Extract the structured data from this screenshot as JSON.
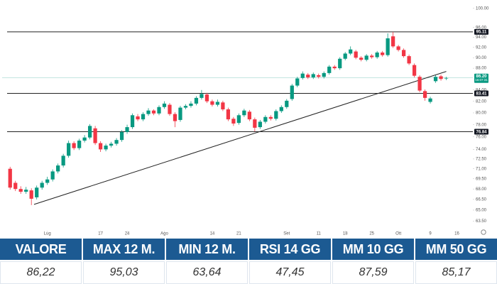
{
  "chart_data": {
    "type": "candlestick",
    "up_color": "#089981",
    "down_color": "#f23645",
    "open": [
      71.0,
      68.9,
      68.0,
      67.6,
      67.8,
      66.8,
      68.2,
      68.9,
      69.4,
      70.6,
      71.5,
      73.0,
      75.0,
      74.2,
      75.4,
      75.9,
      77.4,
      75.0,
      74.0,
      74.6,
      74.9,
      75.5,
      76.8,
      77.6,
      79.4,
      78.9,
      79.8,
      80.4,
      79.9,
      81.0,
      81.4,
      79.8,
      78.8,
      80.9,
      81.2,
      81.6,
      82.6,
      83.2,
      82.0,
      81.4,
      81.8,
      80.6,
      79.0,
      78.3,
      79.6,
      80.2,
      78.9,
      77.6,
      78.5,
      79.3,
      79.0,
      80.3,
      81.0,
      82.4,
      84.8,
      86.2,
      86.8,
      86.3,
      86.7,
      86.4,
      87.1,
      88.3,
      88.0,
      89.8,
      90.8,
      91.2,
      90.0,
      89.6,
      90.4,
      90.1,
      91.0,
      90.5,
      94.2,
      92.2,
      91.5,
      90.3,
      88.6,
      86.4,
      83.8,
      81.9,
      85.6,
      86.5,
      86.1
    ],
    "high": [
      71.3,
      69.2,
      68.4,
      68.3,
      68.1,
      68.5,
      69.2,
      69.8,
      70.9,
      71.8,
      73.3,
      75.4,
      75.3,
      75.7,
      76.3,
      78.1,
      77.8,
      75.3,
      74.9,
      75.2,
      75.8,
      77.1,
      78.0,
      79.9,
      79.8,
      80.1,
      80.8,
      80.6,
      81.3,
      82.0,
      81.7,
      80.1,
      81.2,
      81.5,
      82.0,
      82.9,
      84.0,
      83.5,
      82.3,
      82.3,
      82.1,
      80.9,
      79.3,
      79.9,
      80.7,
      80.5,
      79.2,
      78.8,
      79.6,
      79.6,
      80.6,
      81.3,
      82.4,
      85.1,
      86.4,
      87.4,
      87.1,
      87.2,
      87.0,
      87.4,
      88.6,
      88.6,
      90.1,
      91.1,
      92.2,
      91.5,
      90.3,
      90.7,
      90.7,
      91.3,
      91.3,
      94.8,
      95.1,
      92.5,
      91.8,
      90.6,
      88.9,
      86.7,
      84.1,
      82.8,
      86.7,
      86.8,
      86.4
    ],
    "low": [
      67.9,
      67.7,
      67.3,
      67.3,
      65.7,
      66.5,
      67.9,
      68.6,
      69.1,
      70.3,
      71.2,
      72.7,
      73.9,
      73.9,
      75.1,
      75.6,
      74.7,
      73.6,
      73.7,
      74.3,
      74.6,
      75.2,
      76.5,
      77.3,
      78.6,
      78.6,
      79.5,
      79.6,
      79.6,
      80.7,
      79.5,
      77.6,
      78.5,
      80.6,
      80.9,
      81.3,
      82.3,
      81.7,
      81.1,
      81.1,
      80.3,
      78.6,
      77.8,
      78.0,
      79.3,
      78.6,
      76.9,
      77.3,
      78.2,
      78.7,
      78.7,
      80.0,
      80.7,
      82.1,
      84.5,
      85.9,
      86.0,
      86.0,
      86.1,
      86.1,
      86.8,
      87.7,
      87.7,
      89.5,
      90.5,
      89.7,
      89.3,
      89.3,
      89.8,
      89.8,
      90.2,
      90.2,
      91.9,
      91.2,
      90.0,
      88.6,
      86.3,
      83.6,
      82.1,
      81.6,
      85.3,
      85.7,
      85.8
    ],
    "close": [
      68.2,
      68.0,
      67.6,
      67.9,
      66.6,
      68.2,
      68.9,
      69.4,
      70.6,
      71.5,
      73.0,
      75.0,
      74.2,
      75.4,
      75.9,
      77.8,
      75.0,
      74.0,
      74.6,
      74.9,
      75.5,
      76.8,
      77.6,
      79.6,
      78.9,
      79.8,
      80.4,
      79.9,
      81.0,
      81.6,
      79.8,
      78.6,
      80.9,
      81.2,
      81.6,
      82.6,
      83.3,
      82.0,
      81.4,
      81.9,
      80.6,
      78.9,
      78.2,
      79.6,
      80.4,
      78.9,
      77.5,
      78.5,
      79.3,
      79.0,
      80.3,
      81.0,
      82.1,
      84.8,
      86.1,
      87.0,
      86.3,
      86.9,
      86.4,
      87.1,
      88.3,
      88.0,
      89.8,
      90.8,
      91.6,
      90.0,
      89.6,
      90.4,
      90.1,
      91.0,
      90.5,
      93.8,
      92.2,
      91.5,
      90.3,
      88.9,
      86.6,
      83.9,
      82.6,
      82.5,
      86.4,
      86.0,
      86.2
    ],
    "xlim": [
      -1.5,
      87
    ],
    "xticks": [
      {
        "value": 7,
        "label": "Lug"
      },
      {
        "value": 17,
        "label": "17"
      },
      {
        "value": 22,
        "label": "24"
      },
      {
        "value": 29,
        "label": "Ago"
      },
      {
        "value": 38,
        "label": "14"
      },
      {
        "value": 43,
        "label": "21"
      },
      {
        "value": 52,
        "label": "Set"
      },
      {
        "value": 58,
        "label": "11"
      },
      {
        "value": 63,
        "label": "18"
      },
      {
        "value": 68,
        "label": "25"
      },
      {
        "value": 73,
        "label": "Ott"
      },
      {
        "value": 79,
        "label": "9"
      },
      {
        "value": 84,
        "label": "16"
      }
    ],
    "ylim": [
      62.2,
      101.8
    ],
    "log_scale": true,
    "yticks": [
      {
        "value": 100,
        "label": "100.00"
      },
      {
        "value": 96,
        "label": "96.00"
      },
      {
        "value": 94,
        "label": "94.00"
      },
      {
        "value": 92,
        "label": "92.00"
      },
      {
        "value": 90,
        "label": "90.00"
      },
      {
        "value": 88,
        "label": "88.00"
      },
      {
        "value": 84,
        "label": "84.00"
      },
      {
        "value": 82,
        "label": "82.00"
      },
      {
        "value": 80,
        "label": "80.00"
      },
      {
        "value": 78,
        "label": "78.00"
      },
      {
        "value": 76,
        "label": "76.00"
      },
      {
        "value": 74,
        "label": "74.00"
      },
      {
        "value": 72.5,
        "label": "72.50"
      },
      {
        "value": 71,
        "label": "71.00"
      },
      {
        "value": 69.5,
        "label": "69.50"
      },
      {
        "value": 68,
        "label": "68.00"
      },
      {
        "value": 66.5,
        "label": "66.50"
      },
      {
        "value": 65,
        "label": "65.00"
      },
      {
        "value": 63.5,
        "label": "63.50"
      }
    ],
    "price_lines": [
      95.11,
      83.41,
      76.84
    ],
    "last_price": {
      "value": 86.2,
      "label": "86.20"
    },
    "countdown": "16:07:31",
    "trendline": {
      "x": [
        4.5,
        82
      ],
      "values": [
        65.8,
        87.4
      ]
    }
  },
  "table": {
    "headers": [
      "VALORE",
      "MAX 12 M.",
      "MIN 12 M.",
      "RSI 14 GG",
      "MM 10 GG",
      "MM 50 GG"
    ],
    "rows": [
      [
        "86,22",
        "95,03",
        "63,64",
        "47,45",
        "87,59",
        "85,17"
      ]
    ]
  }
}
